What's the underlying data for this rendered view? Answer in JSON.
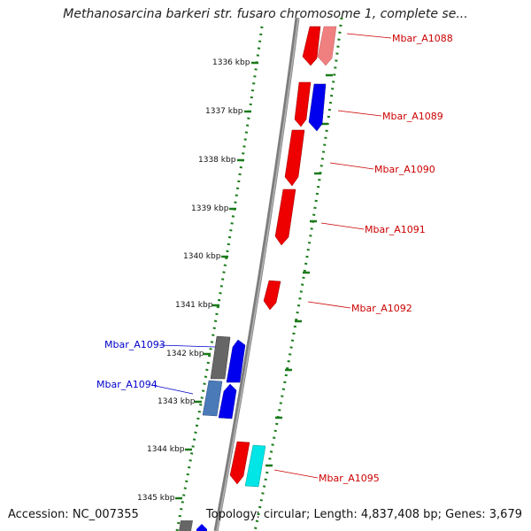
{
  "title": "Methanosarcina barkeri str. fusaro chromosome 1, complete se...",
  "ticks": [
    "1336 kbp",
    "1337 kbp",
    "1338 kbp",
    "1339 kbp",
    "1340 kbp",
    "1341 kbp",
    "1342 kbp",
    "1343 kbp",
    "1344 kbp",
    "1345 kbp"
  ],
  "genes": [
    {
      "label": "Mbar_A1088",
      "color": "#cc0000"
    },
    {
      "label": "Mbar_A1089",
      "color": "#cc0000"
    },
    {
      "label": "Mbar_A1090",
      "color": "#cc0000"
    },
    {
      "label": "Mbar_A1091",
      "color": "#cc0000"
    },
    {
      "label": "Mbar_A1092",
      "color": "#cc0000"
    },
    {
      "label": "Mbar_A1093",
      "color": "#0000cc"
    },
    {
      "label": "Mbar_A1094",
      "color": "#0000cc"
    },
    {
      "label": "Mbar_A1095",
      "color": "#cc0000"
    }
  ],
  "footer": {
    "accession": "Accession: NC_007355",
    "summary": "Topology: circular; Length: 4,837,408 bp; Genes: 3,679"
  },
  "colors": {
    "backbone": "#8a8a8a",
    "tick_dots": "#1a7a1a",
    "forward_gene": "#ee0000",
    "reverse_gene_blue": "#0000ee",
    "pseudo_gray": "#666666",
    "cyan_gene": "#00e5e5",
    "steel_gene": "#4a7ab8",
    "pink_gene": "#f08080"
  }
}
